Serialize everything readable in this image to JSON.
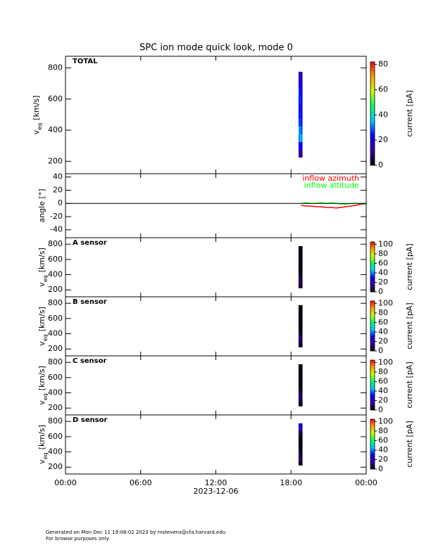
{
  "title": "SPC ion mode quick look, mode 0",
  "footer": [
    "Generated on Mon Dec 11 19:08:02 2023 by mstevens@cfa.harvard.edu",
    "For browse purposes only."
  ],
  "colormap": [
    "#000000",
    "#3c00a0",
    "#0000ff",
    "#00c8ff",
    "#00ff60",
    "#c8ff00",
    "#ffa000",
    "#ff0000"
  ],
  "chart_data": [
    {
      "type": "spectrogram",
      "label": "TOTAL",
      "ylabel": [
        "v",
        "eq",
        "[km/s]"
      ],
      "xlim": [
        0,
        24
      ],
      "ylim": [
        120,
        875
      ],
      "yticks": [
        200,
        400,
        600,
        800
      ],
      "x": [
        18.65,
        18.75,
        18.85
      ],
      "y": [
        250,
        300,
        350,
        400,
        450,
        500,
        550,
        600,
        650,
        700,
        750
      ],
      "values": [
        [
          12,
          22,
          30,
          34,
          26,
          24,
          22,
          24,
          26,
          22,
          18
        ],
        [
          14,
          24,
          38,
          30,
          28,
          26,
          25,
          27,
          24,
          20,
          16
        ],
        [
          10,
          20,
          32,
          28,
          24,
          22,
          20,
          22,
          20,
          18,
          14
        ]
      ],
      "clim": [
        0,
        82
      ],
      "cticks": [
        0,
        20,
        40,
        60,
        80
      ],
      "clabel": "current [pA]"
    },
    {
      "type": "line",
      "ylabel": "angle [°]",
      "xlim": [
        0,
        24
      ],
      "ylim": [
        -52,
        45
      ],
      "yticks": [
        -40,
        -20,
        0,
        20,
        40
      ],
      "x": [
        18.8,
        19.2,
        19.6,
        20.0,
        20.4,
        20.8,
        21.2,
        21.6,
        22.0,
        22.4,
        22.8,
        23.2,
        23.6,
        24.0
      ],
      "series": [
        {
          "name": "inflow azimuth",
          "color": "#ff0000",
          "values": [
            -3,
            -4,
            -4,
            -5,
            -5,
            -6,
            -6,
            -7,
            -6,
            -5,
            -4,
            -3,
            -1,
            -1
          ]
        },
        {
          "name": "inflow altitude",
          "color": "#00ff00",
          "values": [
            0,
            1,
            0,
            0,
            1,
            0,
            1,
            0,
            -1,
            -1,
            0,
            0,
            0,
            -1
          ]
        }
      ]
    },
    {
      "type": "spectrogram",
      "label": "A sensor",
      "ylabel": [
        "v",
        "eq",
        "[km/s]"
      ],
      "xlim": [
        0,
        24
      ],
      "ylim": [
        110,
        885
      ],
      "yticks": [
        200,
        400,
        600,
        800
      ],
      "x": [
        18.65,
        18.75,
        18.85
      ],
      "y": [
        250,
        300,
        350,
        400,
        450,
        500,
        550,
        600,
        650,
        700,
        750
      ],
      "values": [
        [
          3,
          8,
          9,
          4,
          3,
          2,
          2,
          2,
          2,
          2,
          2
        ],
        [
          4,
          10,
          8,
          5,
          3,
          2,
          2,
          2,
          2,
          2,
          2
        ],
        [
          2,
          6,
          5,
          3,
          2,
          2,
          2,
          1,
          1,
          1,
          1
        ]
      ],
      "clim": [
        0,
        105
      ],
      "cticks": [
        0,
        20,
        40,
        60,
        80,
        100
      ],
      "clabel": "current [pA]"
    },
    {
      "type": "spectrogram",
      "label": "B sensor",
      "ylabel": [
        "v",
        "eq",
        "[km/s]"
      ],
      "xlim": [
        0,
        24
      ],
      "ylim": [
        110,
        885
      ],
      "yticks": [
        200,
        400,
        600,
        800
      ],
      "x": [
        18.65,
        18.75,
        18.85
      ],
      "y": [
        250,
        300,
        350,
        400,
        450,
        500,
        550,
        600,
        650,
        700,
        750
      ],
      "values": [
        [
          3,
          7,
          10,
          6,
          3,
          2,
          2,
          2,
          2,
          2,
          2
        ],
        [
          4,
          9,
          11,
          5,
          3,
          2,
          2,
          2,
          2,
          2,
          1
        ],
        [
          2,
          5,
          6,
          3,
          2,
          2,
          1,
          1,
          1,
          1,
          1
        ]
      ],
      "clim": [
        0,
        105
      ],
      "cticks": [
        0,
        20,
        40,
        60,
        80,
        100
      ],
      "clabel": "current [pA]"
    },
    {
      "type": "spectrogram",
      "label": "C sensor",
      "ylabel": [
        "v",
        "eq",
        "[km/s]"
      ],
      "xlim": [
        0,
        24
      ],
      "ylim": [
        110,
        885
      ],
      "yticks": [
        200,
        400,
        600,
        800
      ],
      "x": [
        18.65,
        18.75,
        18.85
      ],
      "y": [
        250,
        300,
        350,
        400,
        450,
        500,
        550,
        600,
        650,
        700,
        750
      ],
      "values": [
        [
          3,
          6,
          9,
          8,
          4,
          2,
          2,
          2,
          2,
          2,
          2
        ],
        [
          3,
          8,
          10,
          7,
          3,
          2,
          2,
          2,
          2,
          2,
          1
        ],
        [
          2,
          5,
          7,
          4,
          2,
          2,
          1,
          1,
          1,
          1,
          1
        ]
      ],
      "clim": [
        0,
        105
      ],
      "cticks": [
        0,
        20,
        40,
        60,
        80,
        100
      ],
      "clabel": "current [pA]"
    },
    {
      "type": "spectrogram",
      "label": "D sensor",
      "ylabel": [
        "v",
        "eq",
        "[km/s]"
      ],
      "xlim": [
        0,
        24
      ],
      "ylim": [
        110,
        885
      ],
      "yticks": [
        200,
        400,
        600,
        800
      ],
      "x": [
        18.65,
        18.75,
        18.85
      ],
      "y": [
        250,
        300,
        350,
        400,
        450,
        500,
        550,
        600,
        650,
        700,
        750
      ],
      "values": [
        [
          3,
          8,
          10,
          6,
          4,
          3,
          3,
          4,
          6,
          14,
          26
        ],
        [
          4,
          10,
          9,
          5,
          4,
          3,
          3,
          4,
          7,
          16,
          28
        ],
        [
          2,
          6,
          6,
          3,
          2,
          2,
          2,
          3,
          5,
          12,
          22
        ]
      ],
      "clim": [
        0,
        105
      ],
      "cticks": [
        0,
        20,
        40,
        60,
        80,
        100
      ],
      "clabel": "current [pA]",
      "xticks": [
        {
          "value": 0,
          "label": "00:00"
        },
        {
          "value": 6,
          "label": "06:00"
        },
        {
          "value": 12,
          "label": "12:00"
        },
        {
          "value": 18,
          "label": "18:00"
        },
        {
          "value": 24,
          "label": "00:00"
        }
      ],
      "xlabel": "2023-12-06"
    }
  ]
}
